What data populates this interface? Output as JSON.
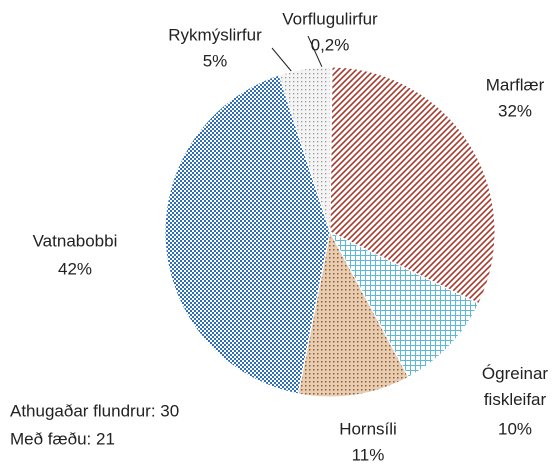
{
  "chart_data": {
    "type": "pie",
    "categories": [
      "Vorflugulirfur",
      "Marflær",
      "Ógreinar fiskleifar",
      "Hornsíli",
      "Vatnabobbi",
      "Rykmýslirfur"
    ],
    "values": [
      0.2,
      32,
      10,
      11,
      42,
      5
    ],
    "value_labels": [
      "0,2%",
      "32%",
      "10%",
      "11%",
      "42%",
      "5%"
    ],
    "colors": [
      "#8a6a3a",
      "#a8392c",
      "#5fb8d8",
      "#8a5a3a",
      "#2f6fb8",
      "#9a9a9a"
    ],
    "annotations": [
      "Athugaðar flundrur: 30",
      "Með fæðu:  21"
    ]
  }
}
